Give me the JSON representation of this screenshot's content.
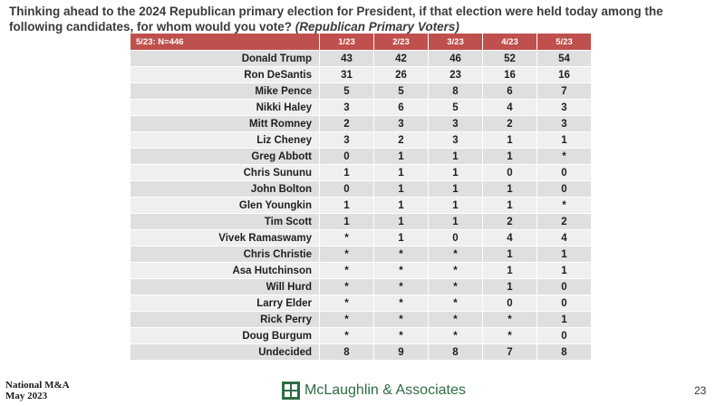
{
  "title": {
    "main": "Thinking ahead to the 2024 Republican primary election for President, if that election were held today among the following candidates, for whom would you vote?",
    "italic": "(Republican Primary Voters)"
  },
  "table": {
    "header_label": "5/23: N=446",
    "columns": [
      "1/23",
      "2/23",
      "3/23",
      "4/23",
      "5/23"
    ],
    "rows": [
      {
        "name": "Donald Trump",
        "values": [
          "43",
          "42",
          "46",
          "52",
          "54"
        ]
      },
      {
        "name": "Ron DeSantis",
        "values": [
          "31",
          "26",
          "23",
          "16",
          "16"
        ]
      },
      {
        "name": "Mike Pence",
        "values": [
          "5",
          "5",
          "8",
          "6",
          "7"
        ]
      },
      {
        "name": "Nikki Haley",
        "values": [
          "3",
          "6",
          "5",
          "4",
          "3"
        ]
      },
      {
        "name": "Mitt Romney",
        "values": [
          "2",
          "3",
          "3",
          "2",
          "3"
        ]
      },
      {
        "name": "Liz Cheney",
        "values": [
          "3",
          "2",
          "3",
          "1",
          "1"
        ]
      },
      {
        "name": "Greg Abbott",
        "values": [
          "0",
          "1",
          "1",
          "1",
          "*"
        ]
      },
      {
        "name": "Chris Sununu",
        "values": [
          "1",
          "1",
          "1",
          "0",
          "0"
        ]
      },
      {
        "name": "John Bolton",
        "values": [
          "0",
          "1",
          "1",
          "1",
          "0"
        ]
      },
      {
        "name": "Glen Youngkin",
        "values": [
          "1",
          "1",
          "1",
          "1",
          "*"
        ]
      },
      {
        "name": "Tim Scott",
        "values": [
          "1",
          "1",
          "1",
          "2",
          "2"
        ]
      },
      {
        "name": "Vivek Ramaswamy",
        "values": [
          "*",
          "1",
          "0",
          "4",
          "4"
        ]
      },
      {
        "name": "Chris Christie",
        "values": [
          "*",
          "*",
          "*",
          "1",
          "1"
        ]
      },
      {
        "name": "Asa Hutchinson",
        "values": [
          "*",
          "*",
          "*",
          "1",
          "1"
        ]
      },
      {
        "name": "Will Hurd",
        "values": [
          "*",
          "*",
          "*",
          "1",
          "0"
        ]
      },
      {
        "name": "Larry Elder",
        "values": [
          "*",
          "*",
          "*",
          "0",
          "0"
        ]
      },
      {
        "name": "Rick Perry",
        "values": [
          "*",
          "*",
          "*",
          "*",
          "1"
        ]
      },
      {
        "name": "Doug Burgum",
        "values": [
          "*",
          "*",
          "*",
          "*",
          "0"
        ]
      },
      {
        "name": "Undecided",
        "values": [
          "8",
          "9",
          "8",
          "7",
          "8"
        ]
      }
    ]
  },
  "footer": {
    "left_line1": "National M&A",
    "left_line2": "May 2023",
    "logo_text": "McLaughlin & Associates",
    "page_number": "23"
  },
  "colors": {
    "header_bg": "#c0504d",
    "row_dark": "#dfdfdf",
    "row_light": "#efefef",
    "logo_green": "#2f6b45"
  },
  "icons": {
    "logo": "mclaughlin-logo-icon"
  }
}
